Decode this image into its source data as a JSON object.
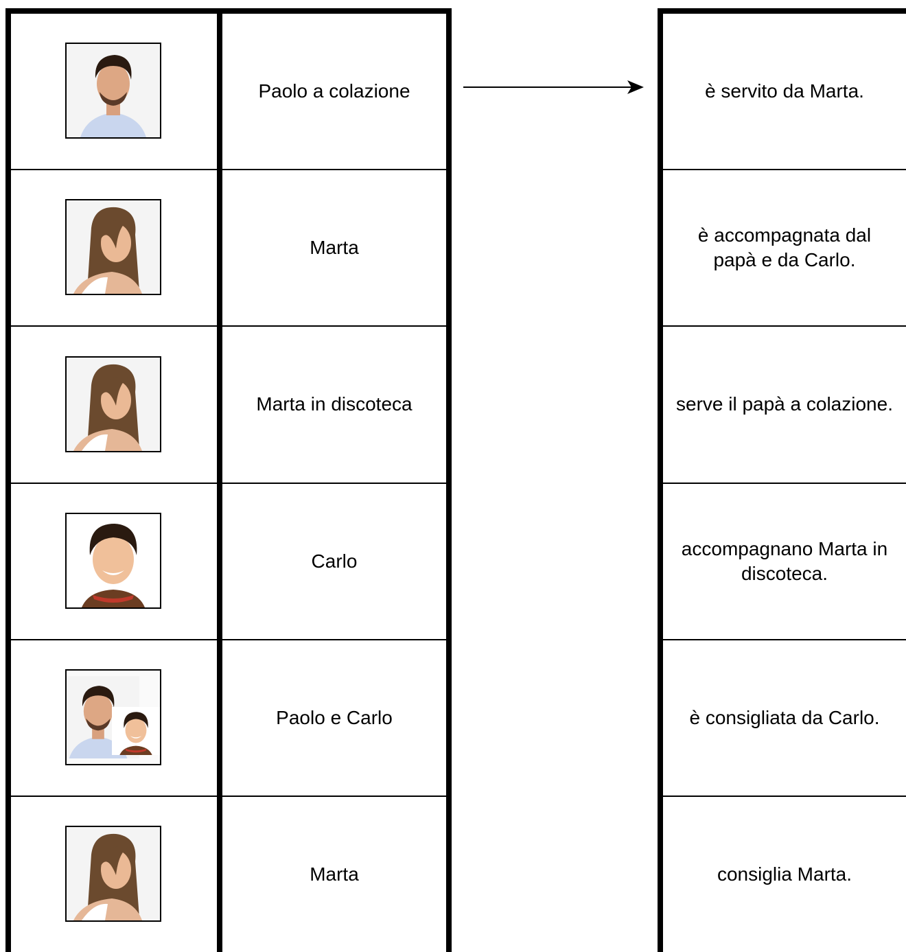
{
  "left_rows": [
    "Paolo a colazione",
    "Marta",
    "Marta in discoteca",
    "Carlo",
    "Paolo e Carlo",
    "Marta"
  ],
  "right_rows": [
    "è servito da Marta.",
    "è accompagnata dal papà e da Carlo.",
    "serve il papà a colazione.",
    "accompagnano Marta in discoteca.",
    "è consigliata da Carlo.",
    "consiglia Marta."
  ]
}
